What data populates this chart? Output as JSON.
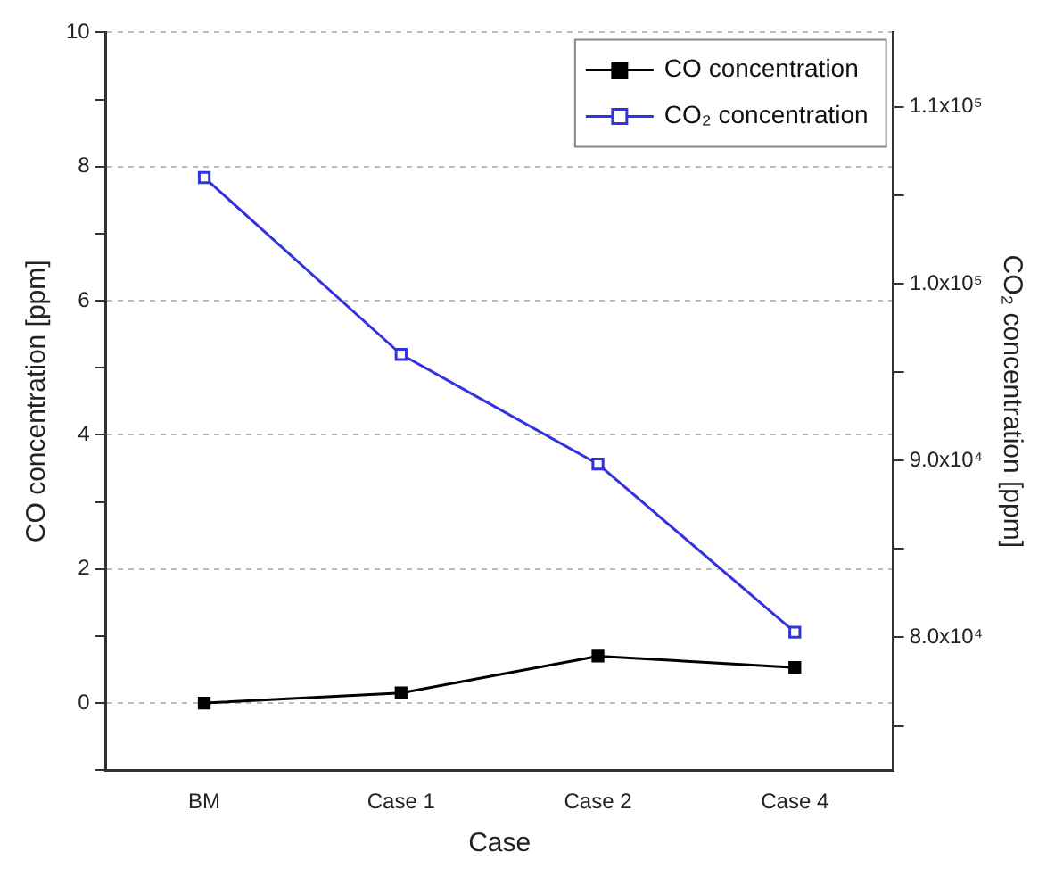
{
  "chart_data": {
    "type": "line",
    "xlabel": "Case",
    "ylabel": "CO concentration [ppm]",
    "y2label": "CO₂ concentration [ppm]",
    "categories": [
      "BM",
      "Case 1",
      "Case 2",
      "Case 4"
    ],
    "series": [
      {
        "name": "CO concentration",
        "color": "#000000",
        "values": [
          0,
          0.15,
          0.7,
          0.53
        ]
      },
      {
        "name": "CO₂ concentration",
        "color": "#3333dd",
        "axis": "y2",
        "values": [
          106000,
          96000,
          89800,
          80300
        ]
      }
    ],
    "ylim": [
      -1,
      10
    ],
    "yticks": [
      {
        "value": -1,
        "label": null
      },
      0,
      {
        "value": 1,
        "label": null
      },
      2,
      {
        "value": 3,
        "label": null
      },
      4,
      {
        "value": 5,
        "label": null
      },
      6,
      {
        "value": 7,
        "label": null
      },
      8,
      {
        "value": 9,
        "label": null
      },
      10
    ],
    "y2lim": [
      72500,
      114200
    ],
    "y2ticks": [
      {
        "value": 75000,
        "label": null
      },
      {
        "value": 80000,
        "label": "8.0x10⁴"
      },
      {
        "value": 85000,
        "label": null
      },
      {
        "value": 90000,
        "label": "9.0x10⁴"
      },
      {
        "value": 95000,
        "label": null
      },
      {
        "value": 100000,
        "label": "1.0x10⁵"
      },
      {
        "value": 105000,
        "label": null
      },
      {
        "value": 110000,
        "label": "1.1x10⁵"
      }
    ],
    "grid": "y",
    "legend": "top right",
    "marker": "square",
    "line_style": "solid"
  }
}
